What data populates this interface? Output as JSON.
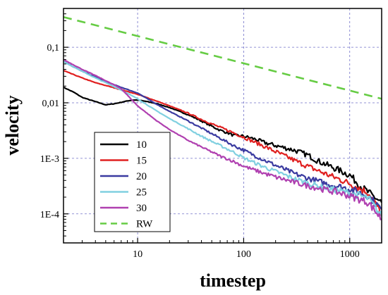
{
  "chart_data": {
    "type": "line",
    "title": "",
    "xlabel": "timestep",
    "ylabel": "velocity",
    "xscale": "log",
    "yscale": "log",
    "xlim": [
      2,
      2000
    ],
    "ylim": [
      3e-05,
      0.5
    ],
    "grid": true,
    "legend_placement": "bottom-left",
    "xticks": [
      {
        "value": 10,
        "label": "10"
      },
      {
        "value": 100,
        "label": "100"
      },
      {
        "value": 1000,
        "label": "1000"
      }
    ],
    "yticks": [
      {
        "value": 0.1,
        "label": "0,1"
      },
      {
        "value": 0.01,
        "label": "0,01"
      },
      {
        "value": 0.001,
        "label": "1E-3"
      },
      {
        "value": 0.0001,
        "label": "1E-4"
      }
    ],
    "series": [
      {
        "name": "10",
        "color": "#000000",
        "dash": "solid",
        "points": [
          [
            2,
            0.019
          ],
          [
            2.5,
            0.0155
          ],
          [
            3,
            0.0125
          ],
          [
            4,
            0.0105
          ],
          [
            5,
            0.0092
          ],
          [
            6,
            0.0096
          ],
          [
            7,
            0.0102
          ],
          [
            8,
            0.0108
          ],
          [
            9,
            0.0112
          ],
          [
            10,
            0.0112
          ],
          [
            12,
            0.0106
          ],
          [
            15,
            0.0097
          ],
          [
            20,
            0.0082
          ],
          [
            30,
            0.0061
          ],
          [
            40,
            0.0047
          ],
          [
            50,
            0.0038
          ],
          [
            60,
            0.0032
          ],
          [
            70,
            0.0029
          ],
          [
            80,
            0.0026
          ],
          [
            100,
            0.0025
          ],
          [
            130,
            0.0022
          ],
          [
            160,
            0.0019
          ],
          [
            200,
            0.0017
          ],
          [
            300,
            0.0014
          ],
          [
            400,
            0.00115
          ],
          [
            500,
            0.0009
          ],
          [
            700,
            0.00068
          ],
          [
            1000,
            0.0005
          ],
          [
            1300,
            0.0003
          ],
          [
            1600,
            0.00022
          ],
          [
            2000,
            0.00016
          ]
        ]
      },
      {
        "name": "15",
        "color": "#e02020",
        "dash": "solid",
        "points": [
          [
            2,
            0.038
          ],
          [
            3,
            0.028
          ],
          [
            4,
            0.023
          ],
          [
            5,
            0.0205
          ],
          [
            7,
            0.0172
          ],
          [
            10,
            0.0142
          ],
          [
            15,
            0.0108
          ],
          [
            20,
            0.0088
          ],
          [
            30,
            0.0065
          ],
          [
            40,
            0.005
          ],
          [
            60,
            0.0036
          ],
          [
            80,
            0.0029
          ],
          [
            100,
            0.0024
          ],
          [
            150,
            0.0017
          ],
          [
            200,
            0.00132
          ],
          [
            300,
            0.00092
          ],
          [
            400,
            0.00072
          ],
          [
            600,
            0.00052
          ],
          [
            800,
            0.00042
          ],
          [
            1000,
            0.00035
          ],
          [
            1500,
            0.00024
          ],
          [
            2000,
            0.0001
          ]
        ]
      },
      {
        "name": "20",
        "color": "#3a3aa0",
        "dash": "solid",
        "points": [
          [
            2,
            0.055
          ],
          [
            3,
            0.037
          ],
          [
            4,
            0.029
          ],
          [
            5,
            0.024
          ],
          [
            7,
            0.019
          ],
          [
            10,
            0.015
          ],
          [
            15,
            0.0095
          ],
          [
            20,
            0.007
          ],
          [
            30,
            0.0047
          ],
          [
            40,
            0.0035
          ],
          [
            60,
            0.0023
          ],
          [
            80,
            0.0017
          ],
          [
            100,
            0.0014
          ],
          [
            150,
            0.00096
          ],
          [
            200,
            0.00075
          ],
          [
            300,
            0.00053
          ],
          [
            400,
            0.00044
          ],
          [
            600,
            0.00035
          ],
          [
            800,
            0.00031
          ],
          [
            1000,
            0.00028
          ],
          [
            1500,
            0.00021
          ],
          [
            2000,
            0.00012
          ]
        ]
      },
      {
        "name": "25",
        "color": "#80d0e0",
        "dash": "solid",
        "points": [
          [
            2,
            0.055
          ],
          [
            3,
            0.037
          ],
          [
            4,
            0.028
          ],
          [
            5,
            0.023
          ],
          [
            7,
            0.017
          ],
          [
            10,
            0.0118
          ],
          [
            15,
            0.0072
          ],
          [
            20,
            0.0052
          ],
          [
            30,
            0.0034
          ],
          [
            40,
            0.0025
          ],
          [
            60,
            0.0017
          ],
          [
            80,
            0.0013
          ],
          [
            100,
            0.00102
          ],
          [
            150,
            0.00072
          ],
          [
            200,
            0.00058
          ],
          [
            300,
            0.00043
          ],
          [
            400,
            0.00036
          ],
          [
            600,
            0.00029
          ],
          [
            800,
            0.00026
          ],
          [
            1000,
            0.00024
          ],
          [
            1500,
            0.00019
          ],
          [
            2000,
            9e-05
          ]
        ]
      },
      {
        "name": "30",
        "color": "#b040b0",
        "dash": "solid",
        "points": [
          [
            2,
            0.06
          ],
          [
            3,
            0.04
          ],
          [
            4,
            0.031
          ],
          [
            5,
            0.025
          ],
          [
            7,
            0.018
          ],
          [
            10,
            0.0088
          ],
          [
            15,
            0.0048
          ],
          [
            20,
            0.0033
          ],
          [
            30,
            0.0021
          ],
          [
            40,
            0.0016
          ],
          [
            60,
            0.0011
          ],
          [
            80,
            0.00088
          ],
          [
            100,
            0.00072
          ],
          [
            150,
            0.00055
          ],
          [
            200,
            0.00046
          ],
          [
            300,
            0.00037
          ],
          [
            400,
            0.00032
          ],
          [
            600,
            0.00027
          ],
          [
            800,
            0.00024
          ],
          [
            1000,
            0.00021
          ],
          [
            1500,
            0.00016
          ],
          [
            2000,
            8e-05
          ]
        ]
      },
      {
        "name": "RW",
        "color": "#66cc44",
        "dash": "dashed",
        "points": [
          [
            2,
            0.35
          ],
          [
            2000,
            0.0118
          ]
        ]
      }
    ]
  }
}
